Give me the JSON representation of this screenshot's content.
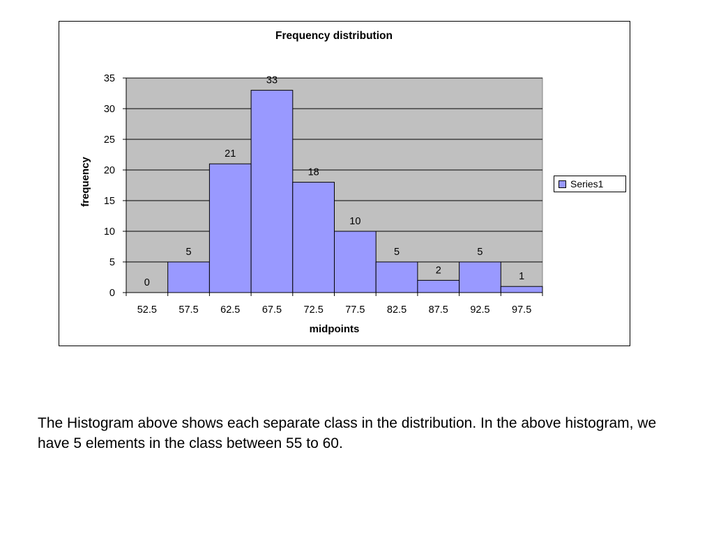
{
  "chart_data": {
    "type": "bar",
    "title": "Frequency distribution",
    "xlabel": "midpoints",
    "ylabel": "frequency",
    "categories": [
      "52.5",
      "57.5",
      "62.5",
      "67.5",
      "72.5",
      "77.5",
      "82.5",
      "87.5",
      "92.5",
      "97.5"
    ],
    "series": [
      {
        "name": "Series1",
        "values": [
          0,
          5,
          21,
          33,
          18,
          10,
          5,
          2,
          5,
          1
        ]
      }
    ],
    "ylim": [
      0,
      35
    ],
    "yticks": [
      0,
      5,
      10,
      15,
      20,
      25,
      30,
      35
    ],
    "data_labels": true,
    "grid": true,
    "legend": "right",
    "colors": {
      "bar_fill": "#9999ff",
      "plot_background": "#c0c0c0",
      "gridline": "#000000"
    }
  },
  "caption": "The Histogram above shows each separate class in the distribution. In the above histogram, we have 5 elements in the class between 55 to 60."
}
